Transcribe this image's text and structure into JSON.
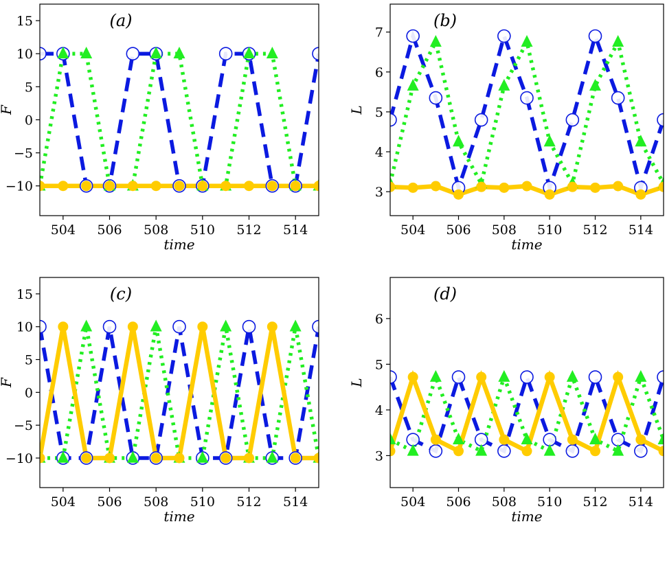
{
  "colors": {
    "blue": "#0b1ae0",
    "green": "#22ee22",
    "yellow": "#ffcc00"
  },
  "chart_data": [
    {
      "type": "line",
      "label": "(a)",
      "xlabel": "time",
      "ylabel": "F",
      "xlim": [
        503,
        515
      ],
      "ylim": [
        -14.5,
        17.5
      ],
      "xticks": [
        504,
        506,
        508,
        510,
        512,
        514
      ],
      "yticks": [
        -10,
        -5,
        0,
        5,
        10,
        15
      ],
      "ytick_labels": [
        "−10",
        "−5",
        "0",
        "5",
        "10",
        "15"
      ],
      "series": [
        {
          "style": "blue-dashed-circle",
          "color": "#0b1ae0",
          "x": [
            503,
            504,
            505,
            506,
            507,
            508,
            509,
            510,
            511,
            512,
            513,
            514,
            515
          ],
          "y": [
            10,
            10,
            -10,
            -10,
            10,
            10,
            -10,
            -10,
            10,
            10,
            -10,
            -10,
            10
          ]
        },
        {
          "style": "green-dotted-triangle",
          "color": "#22ee22",
          "x": [
            503,
            504,
            505,
            506,
            507,
            508,
            509,
            510,
            511,
            512,
            513,
            514,
            515
          ],
          "y": [
            -10,
            10,
            10,
            -10,
            -10,
            10,
            10,
            -10,
            -10,
            10,
            10,
            -10,
            -10
          ]
        },
        {
          "style": "yellow-solid-dot",
          "color": "#ffcc00",
          "x": [
            503,
            504,
            505,
            506,
            507,
            508,
            509,
            510,
            511,
            512,
            513,
            514,
            515
          ],
          "y": [
            -10,
            -10,
            -10,
            -10,
            -10,
            -10,
            -10,
            -10,
            -10,
            -10,
            -10,
            -10,
            -10
          ]
        }
      ]
    },
    {
      "type": "line",
      "label": "(b)",
      "xlabel": "time",
      "ylabel": "L",
      "xlim": [
        503,
        515
      ],
      "ylim": [
        2.4,
        7.7
      ],
      "xticks": [
        504,
        506,
        508,
        510,
        512,
        514
      ],
      "yticks": [
        3,
        4,
        5,
        6,
        7
      ],
      "ytick_labels": [
        "3",
        "4",
        "5",
        "6",
        "7"
      ],
      "series": [
        {
          "style": "blue-dashed-circle",
          "color": "#0b1ae0",
          "x": [
            503,
            504,
            505,
            506,
            507,
            508,
            509,
            510,
            511,
            512,
            513,
            514,
            515
          ],
          "y": [
            4.8,
            6.9,
            5.35,
            3.1,
            4.8,
            6.9,
            5.35,
            3.1,
            4.8,
            6.9,
            5.35,
            3.1,
            4.8
          ]
        },
        {
          "style": "green-dotted-triangle",
          "color": "#22ee22",
          "x": [
            503,
            504,
            505,
            506,
            507,
            508,
            509,
            510,
            511,
            512,
            513,
            514,
            515
          ],
          "y": [
            3.2,
            5.65,
            6.75,
            4.25,
            3.2,
            5.65,
            6.75,
            4.25,
            3.2,
            5.65,
            6.75,
            4.25,
            3.2
          ]
        },
        {
          "style": "yellow-solid-dot",
          "color": "#ffcc00",
          "x": [
            503,
            504,
            505,
            506,
            507,
            508,
            509,
            510,
            511,
            512,
            513,
            514,
            515
          ],
          "y": [
            3.12,
            3.1,
            3.14,
            2.93,
            3.12,
            3.1,
            3.14,
            2.93,
            3.12,
            3.1,
            3.14,
            2.93,
            3.12
          ]
        }
      ]
    },
    {
      "type": "line",
      "label": "(c)",
      "xlabel": "time",
      "ylabel": "F",
      "xlim": [
        503,
        515
      ],
      "ylim": [
        -14.5,
        17.5
      ],
      "xticks": [
        504,
        506,
        508,
        510,
        512,
        514
      ],
      "yticks": [
        -10,
        -5,
        0,
        5,
        10,
        15
      ],
      "ytick_labels": [
        "−10",
        "−5",
        "0",
        "5",
        "10",
        "15"
      ],
      "series": [
        {
          "style": "blue-dashed-circle",
          "color": "#0b1ae0",
          "x": [
            503,
            504,
            505,
            506,
            507,
            508,
            509,
            510,
            511,
            512,
            513,
            514,
            515
          ],
          "y": [
            10,
            -10,
            -10,
            10,
            -10,
            -10,
            10,
            -10,
            -10,
            10,
            -10,
            -10,
            10
          ]
        },
        {
          "style": "green-dotted-triangle",
          "color": "#22ee22",
          "x": [
            503,
            504,
            505,
            506,
            507,
            508,
            509,
            510,
            511,
            512,
            513,
            514,
            515
          ],
          "y": [
            -10,
            -10,
            10,
            -10,
            -10,
            10,
            -10,
            -10,
            10,
            -10,
            -10,
            10,
            -10
          ]
        },
        {
          "style": "yellow-solid-dot",
          "color": "#ffcc00",
          "x": [
            503,
            504,
            505,
            506,
            507,
            508,
            509,
            510,
            511,
            512,
            513,
            514,
            515
          ],
          "y": [
            -10,
            10,
            -10,
            -10,
            10,
            -10,
            -10,
            10,
            -10,
            -10,
            10,
            -10,
            -10
          ]
        }
      ]
    },
    {
      "type": "line",
      "label": "(d)",
      "xlabel": "time",
      "ylabel": "L",
      "xlim": [
        503,
        515
      ],
      "ylim": [
        2.3,
        6.9
      ],
      "xticks": [
        504,
        506,
        508,
        510,
        512,
        514
      ],
      "yticks": [
        3,
        4,
        5,
        6
      ],
      "ytick_labels": [
        "3",
        "4",
        "5",
        "6"
      ],
      "series": [
        {
          "style": "blue-dashed-circle",
          "color": "#0b1ae0",
          "x": [
            503,
            504,
            505,
            506,
            507,
            508,
            509,
            510,
            511,
            512,
            513,
            514,
            515
          ],
          "y": [
            4.72,
            3.35,
            3.1,
            4.72,
            3.35,
            3.1,
            4.72,
            3.35,
            3.1,
            4.72,
            3.35,
            3.1,
            4.72
          ]
        },
        {
          "style": "green-dotted-triangle",
          "color": "#22ee22",
          "x": [
            503,
            504,
            505,
            506,
            507,
            508,
            509,
            510,
            511,
            512,
            513,
            514,
            515
          ],
          "y": [
            3.35,
            3.1,
            4.72,
            3.35,
            3.1,
            4.72,
            3.35,
            3.1,
            4.72,
            3.35,
            3.1,
            4.72,
            3.35
          ]
        },
        {
          "style": "yellow-solid-dot",
          "color": "#ffcc00",
          "x": [
            503,
            504,
            505,
            506,
            507,
            508,
            509,
            510,
            511,
            512,
            513,
            514,
            515
          ],
          "y": [
            3.1,
            4.72,
            3.35,
            3.1,
            4.72,
            3.35,
            3.1,
            4.72,
            3.35,
            3.1,
            4.72,
            3.35,
            3.1
          ]
        }
      ]
    }
  ]
}
